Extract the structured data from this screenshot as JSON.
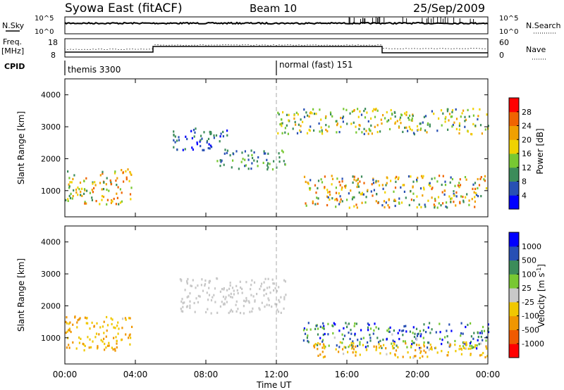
{
  "header": {
    "station": "Syowa East (fitACF)",
    "beam": "Beam 10",
    "date": "25/Sep/2009"
  },
  "nsky_panel": {
    "left_label": "N.Sky",
    "right_label": "N.Search",
    "ticks": [
      "10^5",
      "10^0"
    ],
    "right_ticks": [
      "10^5",
      "10^0"
    ]
  },
  "freq_panel": {
    "left_label_1": "Freq.",
    "left_label_2": "[MHz]",
    "right_label": "Nave",
    "ticks": [
      "18",
      "8"
    ],
    "right_ticks": [
      "60",
      "0"
    ]
  },
  "cpid": {
    "label": "CPID",
    "modes": [
      {
        "name": "themis 3300",
        "start_hour": 0,
        "end_hour": 12
      },
      {
        "name": "normal (fast) 151",
        "start_hour": 12,
        "end_hour": 24
      }
    ]
  },
  "colors": {
    "power_scale": [
      "#0000ff",
      "#2850b4",
      "#3c8c5a",
      "#78c832",
      "#f0d200",
      "#f0a000",
      "#f06400",
      "#ff0000"
    ],
    "velocity_scale": [
      "#ff0000",
      "#f05a00",
      "#f09600",
      "#f0c800",
      "#c8c8c8",
      "#78c832",
      "#3c8c5a",
      "#2850b4",
      "#0000ff"
    ],
    "ground_scatter": "#b4b4b4"
  },
  "chart_data": [
    {
      "type": "heatmap",
      "title": "",
      "xlabel": "",
      "ylabel": "Slant Range [km]",
      "xlim": [
        0,
        24
      ],
      "ylim": [
        180,
        4500
      ],
      "yticks": [
        "1000",
        "2000",
        "3000",
        "4000"
      ],
      "colorbar": {
        "label": "Power [dB]",
        "ticks": [
          "4",
          "8",
          "12",
          "16",
          "20",
          "24",
          "28"
        ],
        "range": [
          0,
          30
        ]
      },
      "regions": [
        {
          "t0": 0.0,
          "t1": 3.8,
          "r0": 600,
          "r1": 1700,
          "v0": 8,
          "v1": 26
        },
        {
          "t0": 6.0,
          "t1": 9.3,
          "r0": 2300,
          "r1": 3000,
          "v0": 2,
          "v1": 10
        },
        {
          "t0": 8.6,
          "t1": 12.5,
          "r0": 1700,
          "r1": 2300,
          "v0": 4,
          "v1": 14
        },
        {
          "t0": 13.5,
          "t1": 24.0,
          "r0": 500,
          "r1": 1500,
          "v0": 4,
          "v1": 26
        },
        {
          "t0": 12.0,
          "t1": 24.0,
          "r0": 2800,
          "r1": 3600,
          "v0": 6,
          "v1": 22
        }
      ]
    },
    {
      "type": "heatmap",
      "title": "",
      "xlabel": "Time UT",
      "ylabel": "Slant Range [km]",
      "xlim": [
        0,
        24
      ],
      "ylim": [
        180,
        4500
      ],
      "xticks": [
        "00:00",
        "04:00",
        "08:00",
        "12:00",
        "16:00",
        "20:00",
        "00:00"
      ],
      "yticks": [
        "1000",
        "2000",
        "3000",
        "4000"
      ],
      "colorbar": {
        "label": "Velocity [m s^-1]",
        "ticks": [
          "1000",
          "500",
          "100",
          "25",
          "-25",
          "-100",
          "-500",
          "-1000"
        ]
      },
      "regions": [
        {
          "t0": 0.0,
          "t1": 3.8,
          "r0": 600,
          "r1": 1700,
          "v0": -500,
          "v1": -100
        },
        {
          "t0": 6.5,
          "t1": 12.5,
          "r0": 1800,
          "r1": 2900,
          "v0": -25,
          "v1": 25
        },
        {
          "t0": 13.5,
          "t1": 24.0,
          "r0": 700,
          "r1": 1500,
          "v0": 100,
          "v1": 1000
        },
        {
          "t0": 14.0,
          "t1": 24.0,
          "r0": 400,
          "r1": 900,
          "v0": -500,
          "v1": -100
        }
      ]
    }
  ]
}
